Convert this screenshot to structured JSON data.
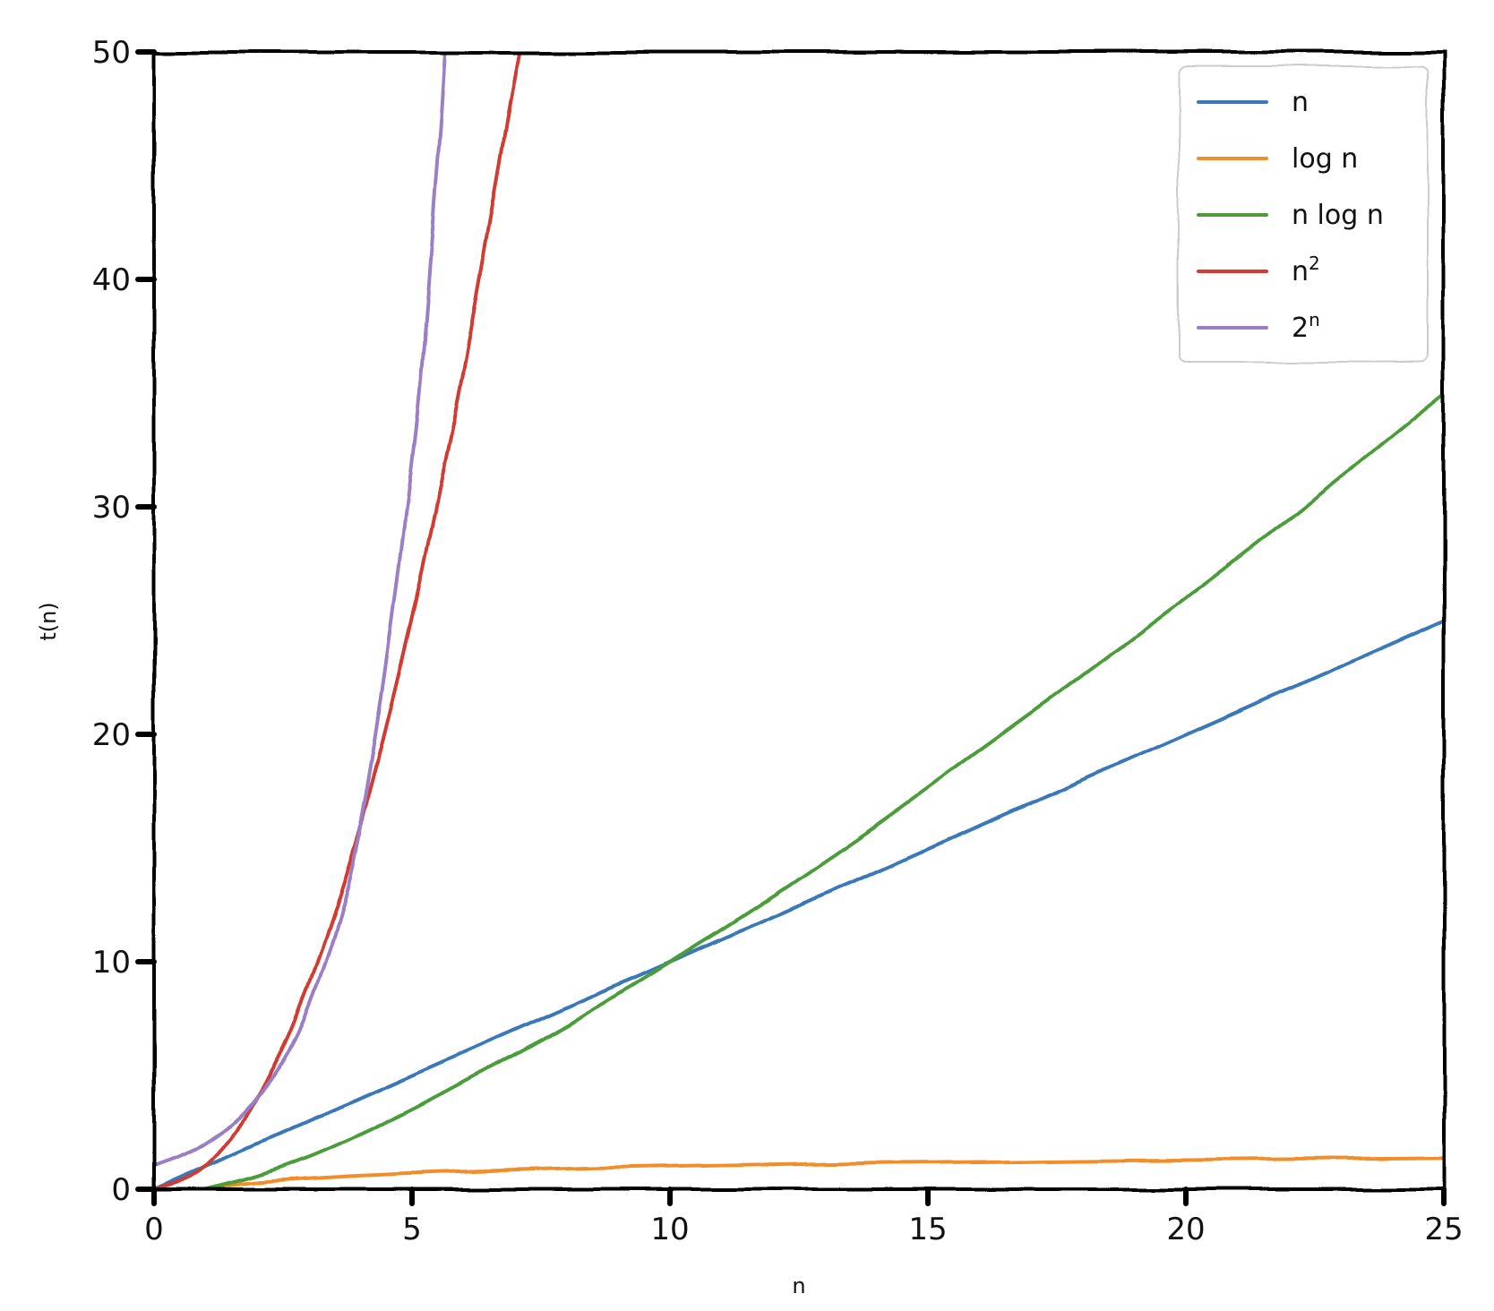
{
  "chart_data": {
    "type": "line",
    "xlabel": "n",
    "ylabel": "t(n)",
    "xlim": [
      0,
      25
    ],
    "ylim": [
      0,
      50
    ],
    "xticks": [
      "0",
      "5",
      "10",
      "15",
      "20",
      "25"
    ],
    "yticks": [
      "0",
      "10",
      "20",
      "30",
      "40",
      "50"
    ],
    "grid": false,
    "legend_position": "top-right",
    "style": "xkcd",
    "series": [
      {
        "name": "n",
        "color": "#3a78b7",
        "x": [
          0,
          2.5,
          5,
          7.5,
          10,
          12.5,
          15,
          17.5,
          20,
          22.5,
          25
        ],
        "y": [
          0,
          2.5,
          5,
          7.5,
          10,
          12.5,
          15,
          17.5,
          20,
          22.5,
          25
        ]
      },
      {
        "name": "log n",
        "color": "#f28e2b",
        "x": [
          1,
          2,
          4,
          6,
          8,
          10,
          12,
          14,
          16,
          18,
          20,
          22,
          25
        ],
        "y": [
          0,
          0.3,
          0.6,
          0.78,
          0.9,
          1.0,
          1.08,
          1.15,
          1.2,
          1.26,
          1.3,
          1.34,
          1.4
        ]
      },
      {
        "name": "n log n",
        "color": "#4c9c3a",
        "x": [
          1,
          2,
          3,
          4,
          5,
          6,
          8,
          10,
          12,
          14,
          16,
          18,
          20,
          22,
          25
        ],
        "y": [
          0,
          0.6,
          1.4,
          2.4,
          3.5,
          4.7,
          7.2,
          10,
          12.9,
          16,
          19.3,
          22.6,
          26,
          29.5,
          35
        ]
      },
      {
        "name": "n^2",
        "color": "#d13b32",
        "x": [
          0,
          1,
          2,
          3,
          4,
          5,
          6,
          7,
          7.07
        ],
        "y": [
          0,
          1,
          4,
          9,
          16,
          25,
          36,
          49,
          50
        ]
      },
      {
        "name": "2^n",
        "color": "#9b7fc6",
        "x": [
          0,
          1,
          2,
          3,
          4,
          5,
          5.5,
          5.64
        ],
        "y": [
          1,
          2,
          4,
          8,
          16,
          32,
          45.3,
          50
        ]
      }
    ]
  }
}
